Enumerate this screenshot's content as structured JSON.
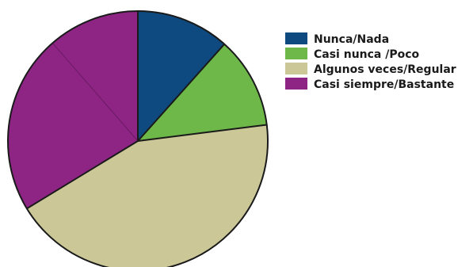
{
  "chart_data": {
    "type": "pie",
    "title": "",
    "start_angle_deg": 0,
    "direction": "clockwise",
    "slices": [
      {
        "label": "Nunca/Nada",
        "value": 11.6,
        "color": "#0e4a80"
      },
      {
        "label": "Casi nunca /Poco",
        "value": 11.4,
        "color": "#6db848"
      },
      {
        "label": "Algunos veces/Regular",
        "value": 43.3,
        "color": "#cbc797"
      },
      {
        "label": "Casi siempre/Bastante",
        "value": 33.7,
        "color": "#8e2585",
        "divider_at_value": 22.3
      }
    ],
    "legend": {
      "placement": "top-right",
      "entries": [
        "Nunca/Nada",
        "Casi nunca /Poco",
        "Algunos veces/Regular",
        "Casi siempre/Bastante"
      ]
    }
  }
}
